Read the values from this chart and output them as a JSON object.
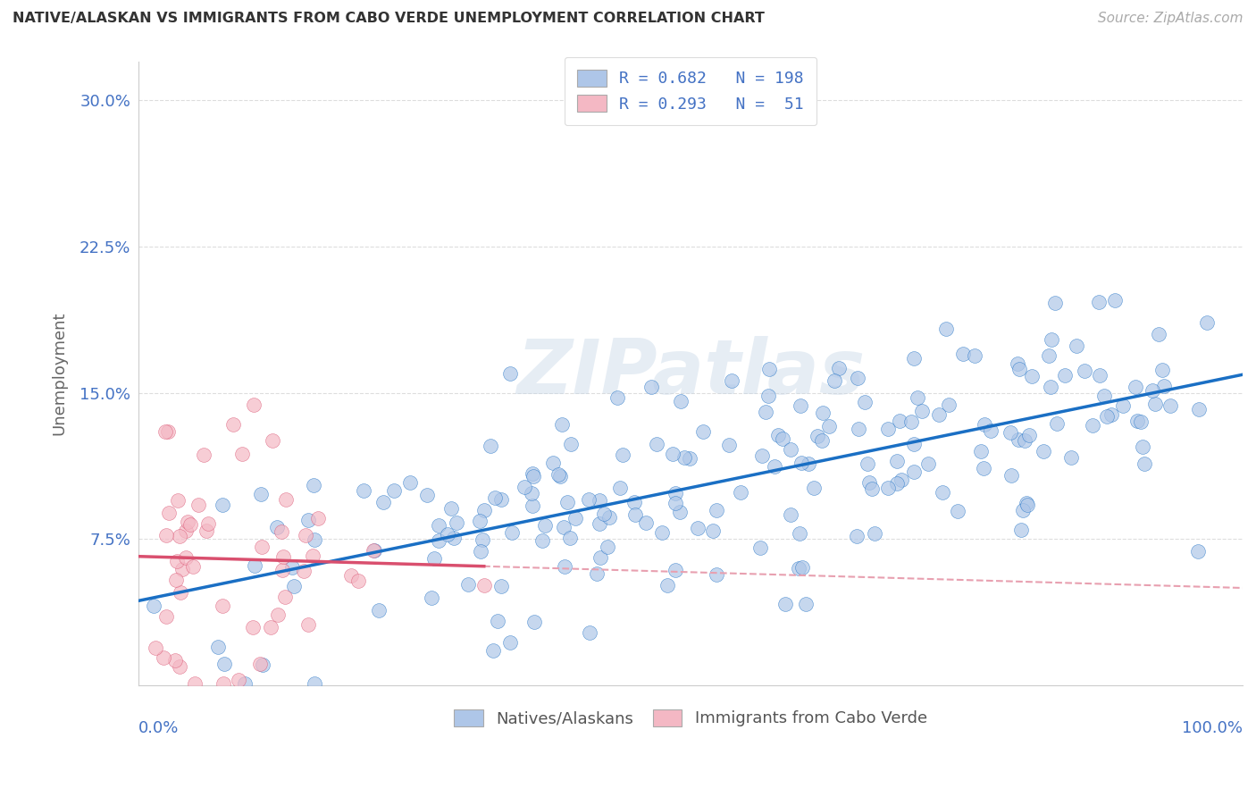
{
  "title": "NATIVE/ALASKAN VS IMMIGRANTS FROM CABO VERDE UNEMPLOYMENT CORRELATION CHART",
  "source": "Source: ZipAtlas.com",
  "ylabel": "Unemployment",
  "ytick_labels": [
    "7.5%",
    "15.0%",
    "22.5%",
    "30.0%"
  ],
  "ytick_values": [
    0.075,
    0.15,
    0.225,
    0.3
  ],
  "legend_entries": [
    {
      "label": "R = 0.682   N = 198",
      "color": "#aec6e8"
    },
    {
      "label": "R = 0.293   N =  51",
      "color": "#f4b8c4"
    }
  ],
  "blue_R": 0.682,
  "blue_N": 198,
  "pink_R": 0.293,
  "pink_N": 51,
  "watermark": "ZIPatlas",
  "scatter_blue_color": "#aec6e8",
  "scatter_pink_color": "#f4b8c4",
  "line_blue_color": "#1a6fc4",
  "line_pink_color": "#d94f6e",
  "line_pink_dashed_color": "#e8a0b0",
  "background_color": "#ffffff",
  "grid_color": "#dddddd",
  "title_color": "#333333",
  "axis_label_color": "#4472c4",
  "xlim": [
    0.0,
    1.0
  ],
  "ylim": [
    0.0,
    0.32
  ]
}
